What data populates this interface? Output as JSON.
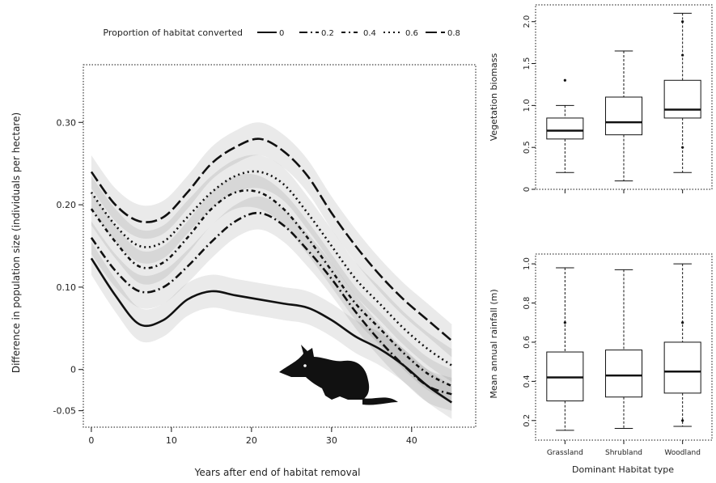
{
  "colors": {
    "ink": "#111111",
    "band": "#555555",
    "background": "#ffffff"
  },
  "legend": {
    "title": "Proportion of habitat converted",
    "entries": [
      {
        "label": "0",
        "style": "solid"
      },
      {
        "label": "0.2",
        "style": "dashdot"
      },
      {
        "label": "0.4",
        "style": "dotdash"
      },
      {
        "label": "0.6",
        "style": "dotted"
      },
      {
        "label": "0.8",
        "style": "longdash"
      }
    ]
  },
  "chart_data": [
    {
      "type": "line",
      "xlabel": "Years after end of habitat removal",
      "ylabel": "Difference in population size (individuals per hectare)",
      "xlim": [
        -1,
        48
      ],
      "ylim": [
        -0.07,
        0.37
      ],
      "x_ticks": [
        0,
        10,
        20,
        30,
        40
      ],
      "y_ticks": [
        -0.05,
        0,
        0.1,
        0.2,
        0.3
      ],
      "y_tick_labels": [
        "-0.05",
        "0",
        "0.10",
        "0.20",
        "0.30"
      ],
      "x": [
        0,
        3,
        6,
        9,
        12,
        15,
        18,
        21,
        24,
        27,
        30,
        33,
        36,
        39,
        42,
        45
      ],
      "series": [
        {
          "name": "0",
          "style": "solid",
          "values": [
            0.135,
            0.09,
            0.055,
            0.06,
            0.085,
            0.095,
            0.09,
            0.085,
            0.08,
            0.075,
            0.06,
            0.04,
            0.025,
            0.005,
            -0.02,
            -0.04
          ]
        },
        {
          "name": "0.2",
          "style": "dashdot",
          "values": [
            0.16,
            0.12,
            0.095,
            0.1,
            0.125,
            0.155,
            0.18,
            0.19,
            0.175,
            0.145,
            0.11,
            0.07,
            0.035,
            0.005,
            -0.02,
            -0.03
          ]
        },
        {
          "name": "0.4",
          "style": "dotdash",
          "values": [
            0.195,
            0.155,
            0.125,
            0.13,
            0.16,
            0.195,
            0.215,
            0.215,
            0.195,
            0.16,
            0.12,
            0.08,
            0.05,
            0.02,
            -0.005,
            -0.02
          ]
        },
        {
          "name": "0.6",
          "style": "dotted",
          "values": [
            0.215,
            0.175,
            0.15,
            0.155,
            0.185,
            0.215,
            0.235,
            0.24,
            0.225,
            0.19,
            0.15,
            0.11,
            0.08,
            0.05,
            0.025,
            0.005
          ]
        },
        {
          "name": "0.8",
          "style": "longdash",
          "values": [
            0.24,
            0.2,
            0.18,
            0.185,
            0.215,
            0.25,
            0.27,
            0.28,
            0.265,
            0.235,
            0.19,
            0.15,
            0.115,
            0.085,
            0.06,
            0.035
          ]
        }
      ]
    },
    {
      "type": "box",
      "ylabel": "Vegetation biomass",
      "y_ticks": [
        0,
        0.5,
        1.0,
        1.5,
        2.0
      ],
      "y_tick_labels": [
        "0",
        "0.5",
        "1.0",
        "1.5",
        "2.0"
      ],
      "ylim": [
        0,
        2.2
      ],
      "boxes": [
        {
          "min": 0.2,
          "q1": 0.6,
          "median": 0.7,
          "q3": 0.85,
          "max": 1.0,
          "outliers": [
            1.3
          ]
        },
        {
          "min": 0.1,
          "q1": 0.65,
          "median": 0.8,
          "q3": 1.1,
          "max": 1.65,
          "outliers": []
        },
        {
          "min": 0.2,
          "q1": 0.85,
          "median": 0.95,
          "q3": 1.3,
          "max": 2.1,
          "outliers": [
            0.5,
            1.6,
            2.0
          ]
        }
      ]
    },
    {
      "type": "box",
      "ylabel": "Mean annual rainfall (m)",
      "y_ticks": [
        0.2,
        0.4,
        0.6,
        0.8,
        1.0
      ],
      "y_tick_labels": [
        "0.2",
        "0.4",
        "0.6",
        "0.8",
        "1.0"
      ],
      "ylim": [
        0.1,
        1.05
      ],
      "xlabel": "Dominant Habitat type",
      "categories": [
        "Grassland",
        "Shrubland",
        "Woodland"
      ],
      "boxes": [
        {
          "min": 0.15,
          "q1": 0.3,
          "median": 0.42,
          "q3": 0.55,
          "max": 0.98,
          "outliers": [
            0.7
          ]
        },
        {
          "min": 0.16,
          "q1": 0.32,
          "median": 0.43,
          "q3": 0.56,
          "max": 0.97,
          "outliers": []
        },
        {
          "min": 0.17,
          "q1": 0.34,
          "median": 0.45,
          "q3": 0.6,
          "max": 1.0,
          "outliers": [
            0.7,
            0.2
          ]
        }
      ]
    }
  ]
}
